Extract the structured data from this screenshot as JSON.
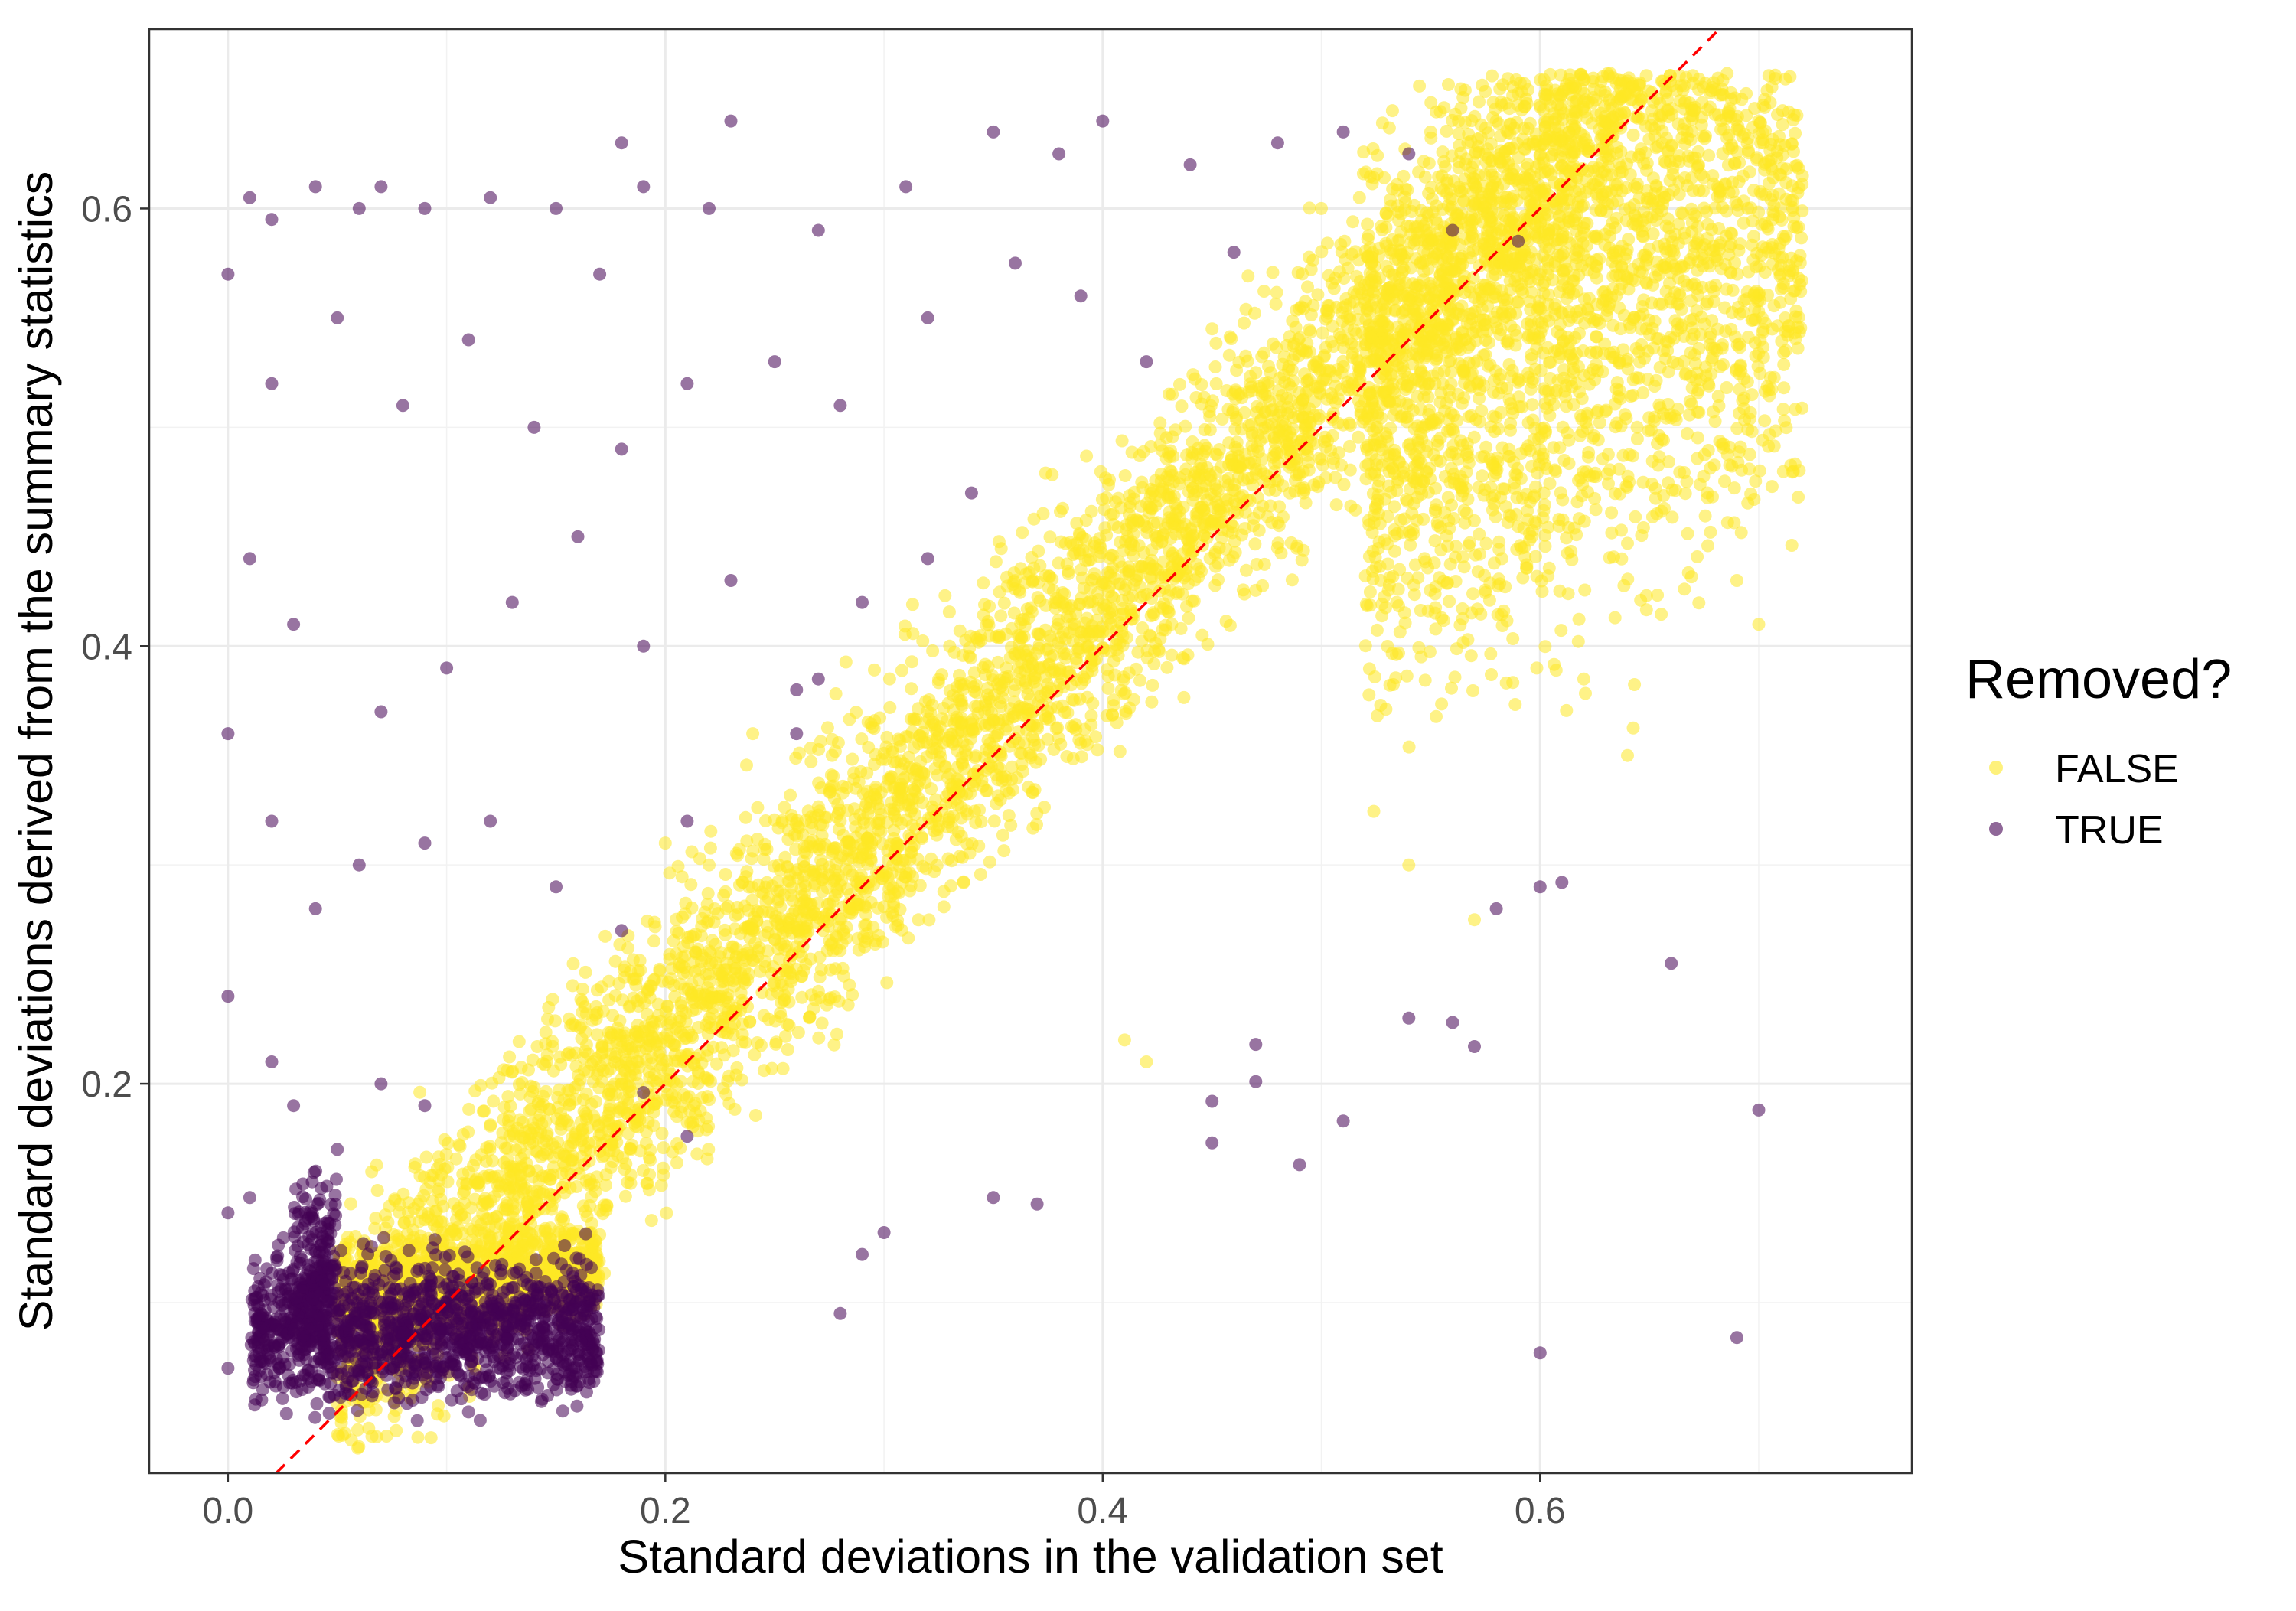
{
  "chart_data": {
    "type": "scatter",
    "title": "",
    "xlabel": "Standard deviations in the validation set",
    "ylabel": "Standard deviations derived from the summary statistics",
    "xlim": [
      -0.036,
      0.77
    ],
    "ylim": [
      0.022,
      0.682
    ],
    "x_ticks": [
      0.0,
      0.2,
      0.4,
      0.6
    ],
    "x_tick_labels": [
      "0.0",
      "0.2",
      "0.4",
      "0.6"
    ],
    "y_ticks": [
      0.2,
      0.4,
      0.6
    ],
    "y_tick_labels": [
      "0.2",
      "0.4",
      "0.6"
    ],
    "grid": true,
    "legend": {
      "title": "Removed?",
      "position": "right",
      "entries": [
        {
          "label": "FALSE",
          "color": "#fde725"
        },
        {
          "label": "TRUE",
          "color": "#440154"
        }
      ]
    },
    "reference_line": {
      "style": "dashed",
      "color": "#ff0000",
      "slope": 1.0,
      "intercept": 0.0
    },
    "series": [
      {
        "name": "FALSE",
        "color": "#fde725",
        "opacity": 0.55,
        "clusters": [
          {
            "x_from": 0.05,
            "x_to": 0.7,
            "y_base": 0.1,
            "y_slope": 1.0,
            "y_offset": -0.03,
            "y_spread": 0.06,
            "n": 5200
          },
          {
            "x_from": 0.05,
            "x_to": 0.17,
            "y_base": 0.105,
            "y_slope": 0.1,
            "y_offset": 0.0,
            "y_spread": 0.02,
            "n": 900
          },
          {
            "x_from": 0.52,
            "x_to": 0.72,
            "y_base": 0.5,
            "y_slope": 0.5,
            "y_offset": 0.0,
            "y_spread": 0.13,
            "n": 2200
          }
        ],
        "points": [
          [
            0.55,
            0.635
          ],
          [
            0.58,
            0.64
          ],
          [
            0.62,
            0.63
          ],
          [
            0.68,
            0.643
          ],
          [
            0.7,
            0.64
          ],
          [
            0.72,
            0.615
          ],
          [
            0.71,
            0.57
          ],
          [
            0.5,
            0.6
          ],
          [
            0.47,
            0.525
          ],
          [
            0.45,
            0.545
          ],
          [
            0.36,
            0.43
          ],
          [
            0.33,
            0.4
          ],
          [
            0.24,
            0.36
          ],
          [
            0.2,
            0.31
          ],
          [
            0.22,
            0.3
          ],
          [
            0.24,
            0.27
          ],
          [
            0.18,
            0.2
          ],
          [
            0.54,
            0.3
          ],
          [
            0.57,
            0.275
          ],
          [
            0.69,
            0.43
          ],
          [
            0.7,
            0.41
          ],
          [
            0.64,
            0.35
          ],
          [
            0.62,
            0.385
          ],
          [
            0.41,
            0.22
          ],
          [
            0.42,
            0.21
          ]
        ]
      },
      {
        "name": "TRUE",
        "color": "#440154",
        "opacity": 0.55,
        "clusters": [
          {
            "x_from": 0.01,
            "x_to": 0.17,
            "y_base": 0.088,
            "y_slope": 0.0,
            "y_offset": 0.0,
            "y_spread": 0.03,
            "n": 1400
          },
          {
            "x_from": 0.03,
            "x_to": 0.05,
            "y_base": 0.12,
            "y_slope": 0.0,
            "y_offset": 0.0,
            "y_spread": 0.04,
            "n": 160
          }
        ],
        "points": [
          [
            0.0,
            0.57
          ],
          [
            0.01,
            0.605
          ],
          [
            0.02,
            0.595
          ],
          [
            0.04,
            0.61
          ],
          [
            0.06,
            0.6
          ],
          [
            0.07,
            0.61
          ],
          [
            0.09,
            0.6
          ],
          [
            0.12,
            0.605
          ],
          [
            0.15,
            0.6
          ],
          [
            0.17,
            0.57
          ],
          [
            0.18,
            0.63
          ],
          [
            0.19,
            0.61
          ],
          [
            0.22,
            0.6
          ],
          [
            0.23,
            0.64
          ],
          [
            0.27,
            0.59
          ],
          [
            0.31,
            0.61
          ],
          [
            0.35,
            0.635
          ],
          [
            0.38,
            0.625
          ],
          [
            0.4,
            0.64
          ],
          [
            0.44,
            0.62
          ],
          [
            0.48,
            0.63
          ],
          [
            0.51,
            0.635
          ],
          [
            0.54,
            0.625
          ],
          [
            0.56,
            0.59
          ],
          [
            0.59,
            0.585
          ],
          [
            0.02,
            0.52
          ],
          [
            0.05,
            0.55
          ],
          [
            0.08,
            0.51
          ],
          [
            0.11,
            0.54
          ],
          [
            0.14,
            0.5
          ],
          [
            0.18,
            0.49
          ],
          [
            0.21,
            0.52
          ],
          [
            0.25,
            0.53
          ],
          [
            0.28,
            0.51
          ],
          [
            0.32,
            0.55
          ],
          [
            0.36,
            0.575
          ],
          [
            0.39,
            0.56
          ],
          [
            0.42,
            0.53
          ],
          [
            0.46,
            0.58
          ],
          [
            0.01,
            0.44
          ],
          [
            0.03,
            0.41
          ],
          [
            0.07,
            0.37
          ],
          [
            0.1,
            0.39
          ],
          [
            0.13,
            0.42
          ],
          [
            0.16,
            0.45
          ],
          [
            0.19,
            0.4
          ],
          [
            0.23,
            0.43
          ],
          [
            0.26,
            0.38
          ],
          [
            0.29,
            0.42
          ],
          [
            0.32,
            0.44
          ],
          [
            0.34,
            0.47
          ],
          [
            0.0,
            0.36
          ],
          [
            0.02,
            0.32
          ],
          [
            0.04,
            0.28
          ],
          [
            0.06,
            0.3
          ],
          [
            0.09,
            0.31
          ],
          [
            0.12,
            0.32
          ],
          [
            0.15,
            0.29
          ],
          [
            0.18,
            0.27
          ],
          [
            0.21,
            0.32
          ],
          [
            0.26,
            0.36
          ],
          [
            0.27,
            0.385
          ],
          [
            0.0,
            0.24
          ],
          [
            0.02,
            0.21
          ],
          [
            0.03,
            0.19
          ],
          [
            0.05,
            0.17
          ],
          [
            0.07,
            0.2
          ],
          [
            0.09,
            0.19
          ],
          [
            0.6,
            0.29
          ],
          [
            0.61,
            0.292
          ],
          [
            0.58,
            0.28
          ],
          [
            0.66,
            0.255
          ],
          [
            0.54,
            0.23
          ],
          [
            0.56,
            0.228
          ],
          [
            0.57,
            0.217
          ],
          [
            0.47,
            0.218
          ],
          [
            0.45,
            0.192
          ],
          [
            0.47,
            0.201
          ],
          [
            0.51,
            0.183
          ],
          [
            0.45,
            0.173
          ],
          [
            0.49,
            0.163
          ],
          [
            0.37,
            0.145
          ],
          [
            0.35,
            0.148
          ],
          [
            0.3,
            0.132
          ],
          [
            0.29,
            0.122
          ],
          [
            0.28,
            0.095
          ],
          [
            0.7,
            0.188
          ],
          [
            0.69,
            0.084
          ],
          [
            0.6,
            0.077
          ],
          [
            0.11,
            0.05
          ],
          [
            0.0,
            0.141
          ],
          [
            0.01,
            0.148
          ],
          [
            0.19,
            0.196
          ],
          [
            0.21,
            0.176
          ],
          [
            0.0,
            0.07
          ]
        ]
      }
    ]
  }
}
